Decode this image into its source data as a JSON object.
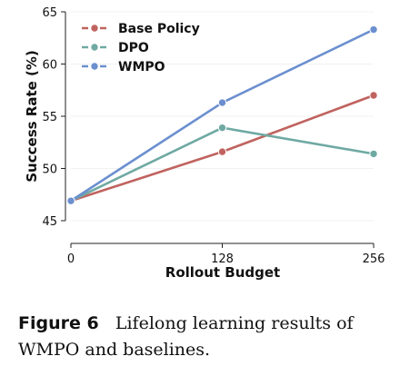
{
  "chart_data": {
    "type": "line",
    "x": [
      0,
      128,
      256
    ],
    "xlabel": "Rollout Budget",
    "ylabel": "Success Rate (%)",
    "xlim": [
      0,
      256
    ],
    "ylim": [
      45,
      65
    ],
    "xticks": [
      "0",
      "128",
      "256"
    ],
    "yticks": [
      "45",
      "50",
      "55",
      "60",
      "65"
    ],
    "legend_position": "top-left",
    "grid": false,
    "series": [
      {
        "name": "Base Policy",
        "color": "#c0635f",
        "values": [
          46.9,
          51.6,
          57.0
        ]
      },
      {
        "name": "DPO",
        "color": "#6fa9a3",
        "values": [
          46.9,
          53.9,
          51.4
        ]
      },
      {
        "name": "WMPO",
        "color": "#6b8fcf",
        "values": [
          46.9,
          56.3,
          63.3
        ]
      }
    ]
  },
  "caption": {
    "label": "Figure 6",
    "text": "Lifelong learning results of WMPO and baselines."
  }
}
